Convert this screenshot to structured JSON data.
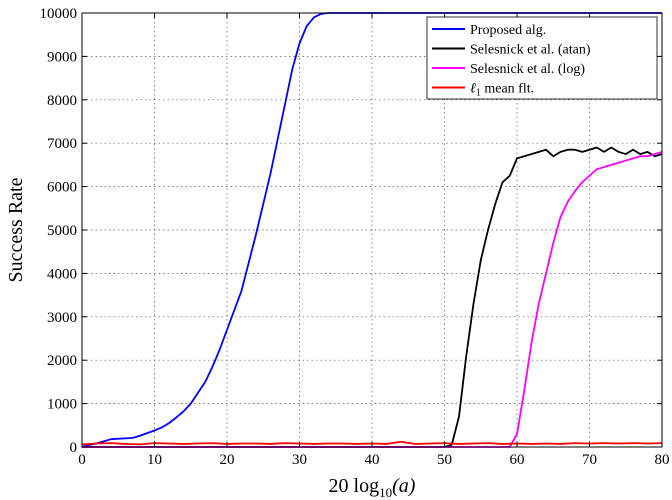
{
  "chart_data": {
    "type": "line",
    "xlabel_parts": {
      "pre": "20 log",
      "sub": "10",
      "post": "(a)"
    },
    "ylabel": "Success Rate",
    "xlim": [
      0,
      80
    ],
    "ylim": [
      0,
      10000
    ],
    "xticks": [
      0,
      10,
      20,
      30,
      40,
      50,
      60,
      70,
      80
    ],
    "yticks": [
      0,
      1000,
      2000,
      3000,
      4000,
      5000,
      6000,
      7000,
      8000,
      9000,
      10000
    ],
    "grid": true,
    "legend_position": "top-right",
    "series": [
      {
        "name": "Proposed alg.",
        "color": "#0000ff",
        "x": [
          0,
          1,
          2,
          3,
          4,
          5,
          6,
          7,
          8,
          9,
          10,
          11,
          12,
          13,
          14,
          15,
          16,
          17,
          18,
          19,
          20,
          21,
          22,
          23,
          24,
          25,
          26,
          27,
          28,
          29,
          30,
          31,
          32,
          33,
          34,
          35,
          40,
          50,
          60,
          70,
          80
        ],
        "y": [
          0,
          50,
          80,
          130,
          180,
          190,
          200,
          210,
          260,
          320,
          380,
          450,
          550,
          680,
          820,
          1000,
          1250,
          1500,
          1850,
          2250,
          2700,
          3150,
          3600,
          4250,
          4900,
          5600,
          6300,
          7100,
          7900,
          8700,
          9300,
          9700,
          9900,
          9980,
          10000,
          10000,
          10000,
          10000,
          10000,
          10000,
          10000
        ]
      },
      {
        "name": "Selesnick et al. (atan)",
        "color": "#000000",
        "x": [
          0,
          50,
          51,
          52,
          53,
          54,
          55,
          56,
          57,
          58,
          59,
          60,
          61,
          62,
          63,
          64,
          65,
          66,
          67,
          68,
          69,
          70,
          71,
          72,
          73,
          74,
          75,
          76,
          77,
          78,
          79,
          80
        ],
        "y": [
          0,
          0,
          50,
          700,
          2100,
          3300,
          4300,
          5000,
          5600,
          6100,
          6250,
          6650,
          6700,
          6750,
          6800,
          6850,
          6700,
          6800,
          6850,
          6850,
          6800,
          6850,
          6900,
          6800,
          6900,
          6800,
          6750,
          6850,
          6750,
          6800,
          6700,
          6750
        ]
      },
      {
        "name": "Selesnick et al. (log)",
        "color": "#ff00ff",
        "x": [
          0,
          59,
          60,
          61,
          62,
          63,
          64,
          65,
          66,
          67,
          68,
          69,
          70,
          71,
          72,
          73,
          74,
          75,
          76,
          77,
          78,
          79,
          80
        ],
        "y": [
          0,
          0,
          300,
          1300,
          2400,
          3300,
          4000,
          4700,
          5300,
          5650,
          5900,
          6100,
          6250,
          6400,
          6450,
          6500,
          6550,
          6600,
          6650,
          6700,
          6700,
          6750,
          6800
        ]
      },
      {
        "name": "ℓ1 mean flt.",
        "label_parts": {
          "sym": "ℓ",
          "sub": "1",
          "rest": " mean flt."
        },
        "color": "#ff0000",
        "x": [
          0,
          2,
          4,
          6,
          8,
          10,
          12,
          14,
          16,
          18,
          20,
          22,
          24,
          26,
          28,
          30,
          32,
          34,
          36,
          38,
          40,
          42,
          44,
          46,
          48,
          50,
          52,
          54,
          56,
          58,
          60,
          62,
          64,
          66,
          68,
          70,
          72,
          74,
          76,
          78,
          80
        ],
        "y": [
          60,
          80,
          90,
          70,
          60,
          90,
          80,
          70,
          80,
          90,
          70,
          80,
          80,
          70,
          90,
          80,
          70,
          80,
          80,
          70,
          80,
          70,
          120,
          70,
          80,
          90,
          70,
          80,
          90,
          70,
          80,
          70,
          80,
          70,
          90,
          80,
          90,
          80,
          90,
          80,
          90
        ]
      }
    ]
  }
}
